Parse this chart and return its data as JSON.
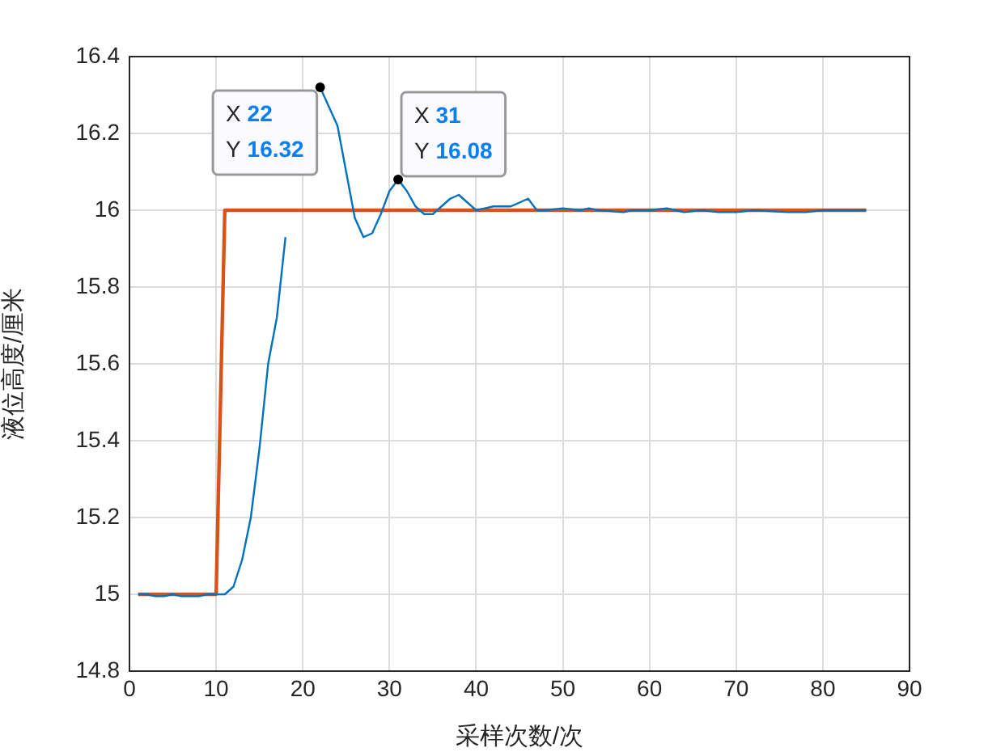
{
  "chart_data": {
    "type": "line",
    "xlabel": "采样次数/次",
    "ylabel": "液位高度/厘米",
    "xlim": [
      0,
      90
    ],
    "xticks": [
      0,
      10,
      20,
      30,
      40,
      50,
      60,
      70,
      80,
      90
    ],
    "ylim": [
      14.8,
      16.4
    ],
    "yticks": [
      14.8,
      15,
      15.2,
      15.4,
      15.6,
      15.8,
      16,
      16.2,
      16.4
    ],
    "grid": true,
    "marker": "none",
    "line_style": "solid",
    "series": [
      {
        "color": "#0072bd",
        "x": [
          1,
          2,
          3,
          4,
          5,
          6,
          7,
          8,
          9,
          10,
          11,
          12,
          13,
          14,
          15,
          16,
          17,
          18,
          19,
          20,
          21,
          22,
          23,
          24,
          25,
          26,
          27,
          28,
          29,
          30,
          31,
          32,
          33,
          34,
          35,
          36,
          37,
          38,
          39,
          40,
          41,
          42,
          43,
          44,
          45,
          46,
          47,
          48,
          50,
          52,
          53,
          54,
          57,
          58,
          60,
          62,
          63,
          64,
          66,
          68,
          70,
          72,
          76,
          78,
          80,
          85
        ],
        "values": [
          15,
          15,
          14.995,
          14.995,
          15,
          14.995,
          14.995,
          14.995,
          15,
          15,
          15,
          15.02,
          15.09,
          15.2,
          15.38,
          15.6,
          15.72,
          15.93,
          null,
          null,
          null,
          16.32,
          16.27,
          16.22,
          16.1,
          15.98,
          15.93,
          15.94,
          15.99,
          16.05,
          16.08,
          16.05,
          16.01,
          15.99,
          15.99,
          16.01,
          16.03,
          16.04,
          16.02,
          16,
          16.005,
          16.01,
          16.01,
          16.01,
          16.02,
          16.03,
          16,
          16,
          16.005,
          16,
          16.005,
          16,
          15.995,
          16,
          16,
          16.005,
          16,
          15.995,
          16,
          15.995,
          15.995,
          16,
          15.995,
          15.995,
          16,
          16
        ]
      },
      {
        "color": "#d95319",
        "x": [
          1,
          10,
          11,
          85
        ],
        "values": [
          15,
          15,
          16,
          16
        ]
      }
    ],
    "annotations": [
      {
        "text": "X 22\nY 16.32",
        "x": 22,
        "y": 16.32
      },
      {
        "text": "X 31\nY 16.08",
        "x": 31,
        "y": 16.08
      }
    ]
  }
}
